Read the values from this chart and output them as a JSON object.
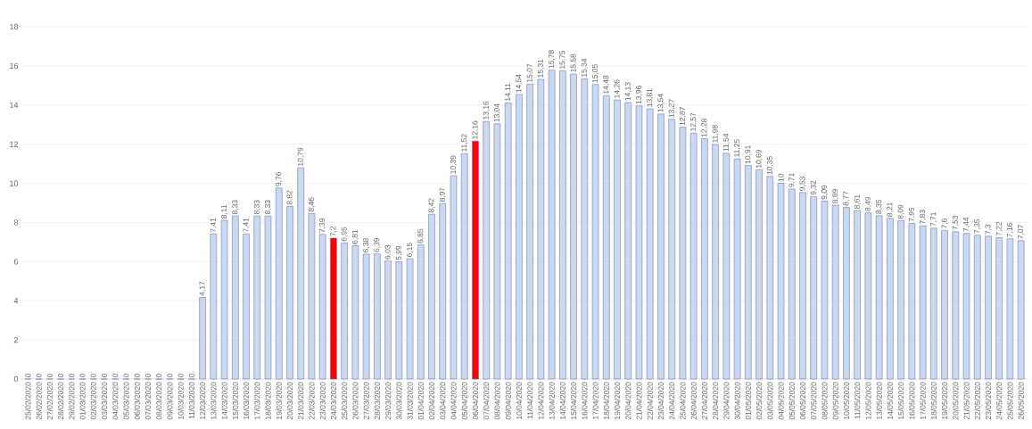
{
  "chart_data": {
    "type": "bar",
    "categories": [
      "25/02/2020",
      "26/02/2020",
      "27/02/2020",
      "28/02/2020",
      "29/02/2020",
      "01/03/2020",
      "02/03/2020",
      "03/03/2020",
      "04/03/2020",
      "05/03/2020",
      "06/03/2020",
      "07/03/2020",
      "08/03/2020",
      "09/03/2020",
      "10/03/2020",
      "11/03/2020",
      "12/03/2020",
      "13/03/2020",
      "14/03/2020",
      "15/03/2020",
      "16/03/2020",
      "17/03/2020",
      "18/03/2020",
      "19/03/2020",
      "20/03/2020",
      "21/03/2020",
      "22/03/2020",
      "23/03/2020",
      "24/03/2020",
      "25/03/2020",
      "26/03/2020",
      "27/03/2020",
      "28/03/2020",
      "29/03/2020",
      "30/03/2020",
      "31/03/2020",
      "01/04/2020",
      "02/04/2020",
      "03/04/2020",
      "04/04/2020",
      "05/04/2020",
      "06/04/2020",
      "07/04/2020",
      "08/04/2020",
      "09/04/2020",
      "10/04/2020",
      "11/04/2020",
      "12/04/2020",
      "13/04/2020",
      "14/04/2020",
      "15/04/2020",
      "16/04/2020",
      "17/04/2020",
      "18/04/2020",
      "19/04/2020",
      "20/04/2020",
      "21/04/2020",
      "22/04/2020",
      "23/04/2020",
      "24/04/2020",
      "25/04/2020",
      "26/04/2020",
      "27/04/2020",
      "28/04/2020",
      "29/04/2020",
      "30/04/2020",
      "01/05/2020",
      "02/05/2020",
      "03/05/2020",
      "04/05/2020",
      "05/05/2020",
      "06/05/2020",
      "07/05/2020",
      "08/05/2020",
      "09/05/2020",
      "10/05/2020",
      "11/05/2020",
      "12/05/2020",
      "13/05/2020",
      "14/05/2020",
      "15/05/2020",
      "16/05/2020",
      "17/05/2020",
      "18/05/2020",
      "19/05/2020",
      "20/05/2020",
      "21/05/2020",
      "22/05/2020",
      "23/05/2020",
      "24/05/2020",
      "25/05/2020",
      "26/05/2020"
    ],
    "values": [
      0,
      0,
      0,
      0,
      0,
      0,
      0,
      0,
      0,
      0,
      0,
      0,
      0,
      0,
      0,
      0,
      4.17,
      7.41,
      8.11,
      8.33,
      7.41,
      8.33,
      8.33,
      9.76,
      8.82,
      10.79,
      8.46,
      7.39,
      7.2,
      6.95,
      6.81,
      6.38,
      6.39,
      6.03,
      5.99,
      6.15,
      6.85,
      8.42,
      8.97,
      10.39,
      11.52,
      12.16,
      13.16,
      13.04,
      14.11,
      14.54,
      15.07,
      15.31,
      15.78,
      15.75,
      15.58,
      15.34,
      15.05,
      14.48,
      14.26,
      14.13,
      13.96,
      13.81,
      13.54,
      13.27,
      12.87,
      12.57,
      12.28,
      11.98,
      11.54,
      11.25,
      10.91,
      10.69,
      10.35,
      10,
      9.71,
      9.53,
      9.32,
      9.09,
      8.89,
      8.77,
      8.61,
      8.49,
      8.35,
      8.21,
      8.09,
      7.95,
      7.83,
      7.71,
      7.6,
      7.53,
      7.44,
      7.35,
      7.3,
      7.22,
      7.16,
      7.07
    ],
    "value_labels": [
      "0",
      "0",
      "0",
      "0",
      "0",
      "0",
      "0",
      "0",
      "0",
      "0",
      "0",
      "0",
      "0",
      "0",
      "0",
      "0",
      "4,17",
      "7,41",
      "8,11",
      "8,33",
      "7,41",
      "8,33",
      "8,33",
      "9,76",
      "8,82",
      "10,79",
      "8,46",
      "7,39",
      "7,2",
      "6,95",
      "6,81",
      "6,38",
      "6,39",
      "6,03",
      "5,99",
      "6,15",
      "6,85",
      "8,42",
      "8,97",
      "10,39",
      "11,52",
      "12,16",
      "13,16",
      "13,04",
      "14,11",
      "14,54",
      "15,07",
      "15,31",
      "15,78",
      "15,75",
      "15,58",
      "15,34",
      "15,05",
      "14,48",
      "14,26",
      "14,13",
      "13,96",
      "13,81",
      "13,54",
      "13,27",
      "12,87",
      "12,57",
      "12,28",
      "11,98",
      "11,54",
      "11,25",
      "10,91",
      "10,69",
      "10,35",
      "10",
      "9,71",
      "9,53",
      "9,32",
      "9,09",
      "8,89",
      "8,77",
      "8,61",
      "8,49",
      "8,35",
      "8,21",
      "8,09",
      "7,95",
      "7,83",
      "7,71",
      "7,6",
      "7,53",
      "7,44",
      "7,35",
      "7,3",
      "7,22",
      "7,16",
      "7,07"
    ],
    "colors": [
      "#c9d9f0",
      "#c9d9f0",
      "#c9d9f0",
      "#c9d9f0",
      "#c9d9f0",
      "#c9d9f0",
      "#c9d9f0",
      "#c9d9f0",
      "#c9d9f0",
      "#c9d9f0",
      "#c9d9f0",
      "#c9d9f0",
      "#c9d9f0",
      "#c9d9f0",
      "#c9d9f0",
      "#c9d9f0",
      "#c9d9f0",
      "#c9d9f0",
      "#c9d9f0",
      "#c9d9f0",
      "#c9d9f0",
      "#c9d9f0",
      "#c9d9f0",
      "#c9d9f0",
      "#c9d9f0",
      "#c9d9f0",
      "#c9d9f0",
      "#c9d9f0",
      "#ff0000",
      "#c9d9f0",
      "#c9d9f0",
      "#c9d9f0",
      "#c9d9f0",
      "#c9d9f0",
      "#c9d9f0",
      "#c9d9f0",
      "#c9d9f0",
      "#c9d9f0",
      "#c9d9f0",
      "#c9d9f0",
      "#c9d9f0",
      "#ff0000",
      "#c9d9f0",
      "#c9d9f0",
      "#c9d9f0",
      "#c9d9f0",
      "#c9d9f0",
      "#c9d9f0",
      "#c9d9f0",
      "#c9d9f0",
      "#c9d9f0",
      "#c9d9f0",
      "#c9d9f0",
      "#c9d9f0",
      "#c9d9f0",
      "#c9d9f0",
      "#c9d9f0",
      "#c9d9f0",
      "#c9d9f0",
      "#c9d9f0",
      "#c9d9f0",
      "#c9d9f0",
      "#c9d9f0",
      "#c9d9f0",
      "#c9d9f0",
      "#c9d9f0",
      "#c9d9f0",
      "#c9d9f0",
      "#c9d9f0",
      "#c9d9f0",
      "#c9d9f0",
      "#c9d9f0",
      "#c9d9f0",
      "#c9d9f0",
      "#c9d9f0",
      "#c9d9f0",
      "#c9d9f0",
      "#c9d9f0",
      "#c9d9f0",
      "#c9d9f0",
      "#c9d9f0",
      "#c9d9f0",
      "#c9d9f0",
      "#c9d9f0",
      "#c9d9f0",
      "#c9d9f0",
      "#c9d9f0",
      "#c9d9f0",
      "#c9d9f0",
      "#c9d9f0",
      "#c9d9f0",
      "#c9d9f0"
    ],
    "ylim": [
      0,
      18
    ],
    "yticks": [
      0,
      2,
      4,
      6,
      8,
      10,
      12,
      14,
      16,
      18
    ],
    "grid": "y"
  }
}
